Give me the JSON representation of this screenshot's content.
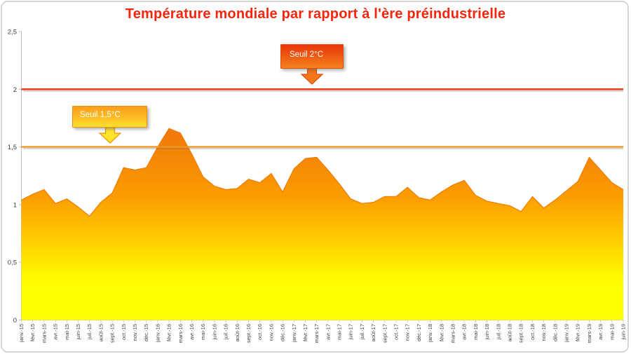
{
  "chart_data": {
    "type": "area",
    "title": "Température mondiale par rapport à l'ère préindustrielle",
    "xlabel": "",
    "ylabel": "",
    "ylim": [
      0,
      2.5
    ],
    "yticks": [
      0,
      0.5,
      1,
      1.5,
      2,
      2.5
    ],
    "ytick_labels": [
      "0",
      "0,5",
      "1",
      "1,5",
      "2",
      "2,5"
    ],
    "grid": false,
    "legend": "none",
    "x": [
      "janv.-15",
      "févr.-15",
      "mars-15",
      "avr.-15",
      "mai-15",
      "juin-15",
      "juil.-15",
      "août-15",
      "sept.-15",
      "oct.-15",
      "nov.-15",
      "déc.-15",
      "janv.-16",
      "févr.-16",
      "mars-16",
      "avr.-16",
      "mai-16",
      "juin-16",
      "juil.-16",
      "août-16",
      "sept.-16",
      "oct.-16",
      "nov.-16",
      "déc.-16",
      "janv.-17",
      "févr.-17",
      "mars-17",
      "avr.-17",
      "mai-17",
      "juin-17",
      "juil.-17",
      "août-17",
      "sept.-17",
      "oct.-17",
      "nov.-17",
      "déc.-17",
      "janv.-18",
      "févr.-18",
      "mars-18",
      "avr.-18",
      "mai-18",
      "juin-18",
      "juil.-18",
      "août-18",
      "sept.-18",
      "oct.-18",
      "nov.-18",
      "déc.-18",
      "janv.-19",
      "févr.-19",
      "mars-19",
      "avr.-19",
      "mai-19",
      "juin-19"
    ],
    "values": [
      1.04,
      1.09,
      1.13,
      1.01,
      1.05,
      0.98,
      0.9,
      1.02,
      1.1,
      1.32,
      1.3,
      1.32,
      1.5,
      1.66,
      1.62,
      1.44,
      1.24,
      1.16,
      1.13,
      1.14,
      1.22,
      1.19,
      1.27,
      1.11,
      1.31,
      1.4,
      1.41,
      1.3,
      1.18,
      1.05,
      1.01,
      1.02,
      1.07,
      1.07,
      1.15,
      1.06,
      1.04,
      1.11,
      1.17,
      1.21,
      1.08,
      1.03,
      1.01,
      0.99,
      0.94,
      1.07,
      0.97,
      1.04,
      1.12,
      1.2,
      1.41,
      1.3,
      1.19,
      1.13
    ],
    "thresholds": [
      {
        "label": "Seuil 2°C",
        "value": 2,
        "color": "#ec3108"
      },
      {
        "label": "Seuil 1,5°C",
        "value": 1.5,
        "color": "#f0941f"
      }
    ],
    "area_gradient_top": "#f0730b",
    "area_gradient_bottom": "#ffff00",
    "title_color": "#f8250d",
    "axis_color": "#bfbfbf",
    "tick_label_color": "#404040"
  }
}
